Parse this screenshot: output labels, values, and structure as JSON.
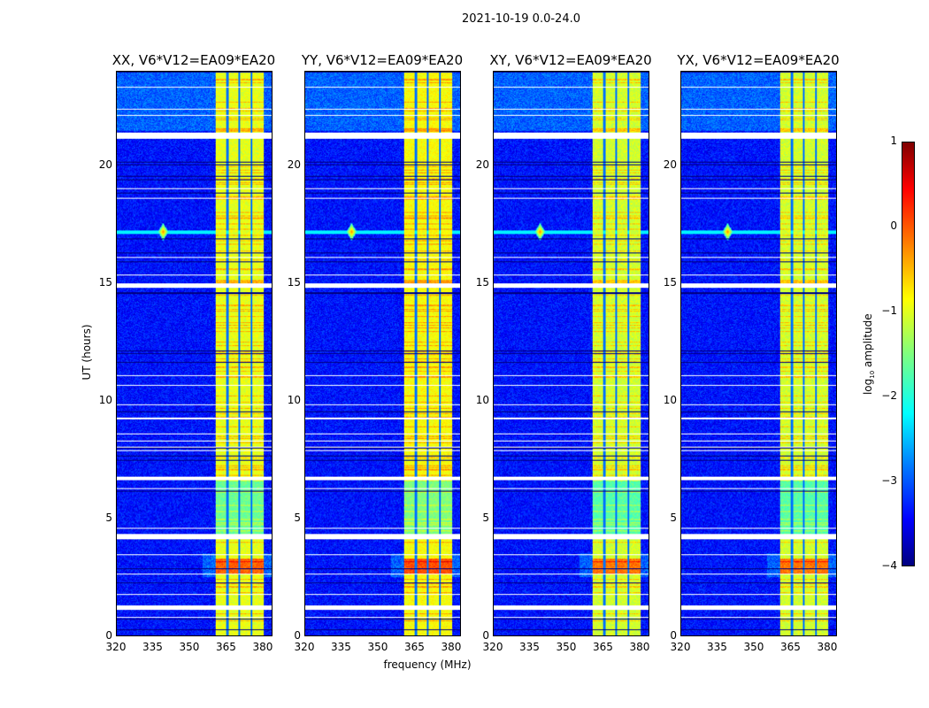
{
  "chart_data": {
    "type": "heatmap",
    "title": "2021-10-19 0.0-24.0",
    "xlabel": "frequency (MHz)",
    "ylabel": "UT (hours)",
    "xlim": [
      320,
      384
    ],
    "ylim": [
      0,
      24
    ],
    "xticks": [
      "320",
      "335",
      "350",
      "365",
      "380"
    ],
    "xtick_values": [
      320,
      335,
      350,
      365,
      380
    ],
    "yticks": [
      "0",
      "5",
      "10",
      "15",
      "20"
    ],
    "ytick_values": [
      0,
      5,
      10,
      15,
      20
    ],
    "colorbar": {
      "label": "log10 amplitude",
      "label_main": "log",
      "label_sub": "10",
      "label_rest": " amplitude",
      "range": [
        -4,
        1
      ],
      "ticks": [
        "1",
        "0",
        "−1",
        "−2",
        "−3",
        "−4"
      ],
      "tick_values": [
        1,
        0,
        -1,
        -2,
        -3,
        -4
      ],
      "colormap": "jet"
    },
    "panels": [
      {
        "title": "XX, V6*V12=EA09*EA20",
        "band_level": -1.0
      },
      {
        "title": "YY, V6*V12=EA09*EA20",
        "band_level": -0.9
      },
      {
        "title": "XY, V6*V12=EA09*EA20",
        "band_level": -1.1
      },
      {
        "title": "YX, V6*V12=EA09*EA20",
        "band_level": -1.1
      }
    ],
    "background_level": -3.3,
    "rfi_band_mhz": [
      360.5,
      380.5
    ],
    "band_gaps_mhz": [
      365.5,
      370.5,
      375.5
    ],
    "flagged_hours": [
      [
        21.2,
        21.4
      ],
      [
        14.85,
        14.95
      ],
      [
        6.65,
        6.75
      ],
      [
        4.15,
        4.3
      ],
      [
        1.15,
        1.25
      ]
    ],
    "rfi_spike": {
      "hours": 17.2,
      "mhz": 339
    }
  }
}
